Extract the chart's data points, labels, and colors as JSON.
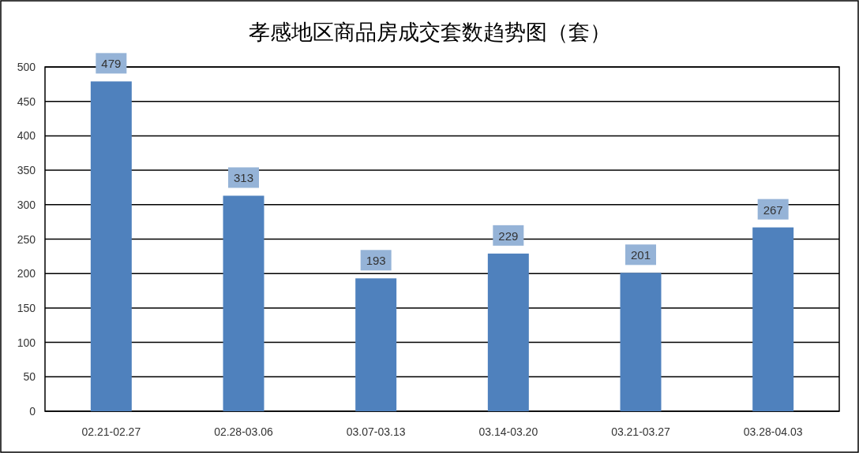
{
  "chart_data": {
    "type": "bar",
    "title": "孝感地区商品房成交套数趋势图（套）",
    "categories": [
      "02.21-02.27",
      "02.28-03.06",
      "03.07-03.13",
      "03.14-03.20",
      "03.21-03.27",
      "03.28-04.03"
    ],
    "values": [
      479,
      313,
      193,
      229,
      201,
      267
    ],
    "color": "#4f81bd",
    "ylim": [
      0,
      500
    ],
    "yticks": [
      0,
      50,
      100,
      150,
      200,
      250,
      300,
      350,
      400,
      450,
      500
    ],
    "grid": "y",
    "data_labels": true
  }
}
